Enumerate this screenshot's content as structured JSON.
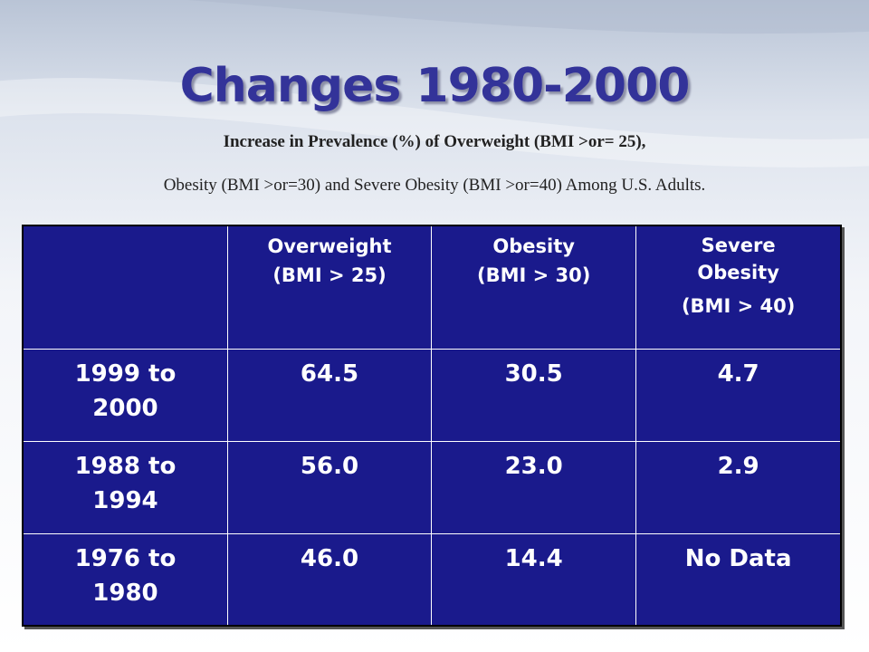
{
  "title": "Changes 1980-2000",
  "subtitle_line1": "Increase in Prevalence (%) of Overweight (BMI >or= 25),",
  "subtitle_line2": "Obesity (BMI >or=30) and Severe Obesity (BMI >or=40) Among U.S. Adults.",
  "table": {
    "headers": [
      {
        "line1": "",
        "line2": ""
      },
      {
        "line1": "Overweight",
        "line2": "(BMI > 25)"
      },
      {
        "line1": "Obesity",
        "line2": "(BMI > 30)"
      },
      {
        "line1": "Severe Obesity",
        "line2": "(BMI > 40)"
      }
    ],
    "rows": [
      {
        "period": "1999 to 2000",
        "overweight": "64.5",
        "obesity": "30.5",
        "severe": "4.7"
      },
      {
        "period": "1988 to 1994",
        "overweight": "56.0",
        "obesity": "23.0",
        "severe": "2.9"
      },
      {
        "period": "1976 to 1980",
        "overweight": "46.0",
        "obesity": "14.4",
        "severe": "No Data"
      }
    ]
  },
  "colors": {
    "title": "#333399",
    "table_background": "#1a1a8c",
    "table_text": "#ffffff"
  }
}
